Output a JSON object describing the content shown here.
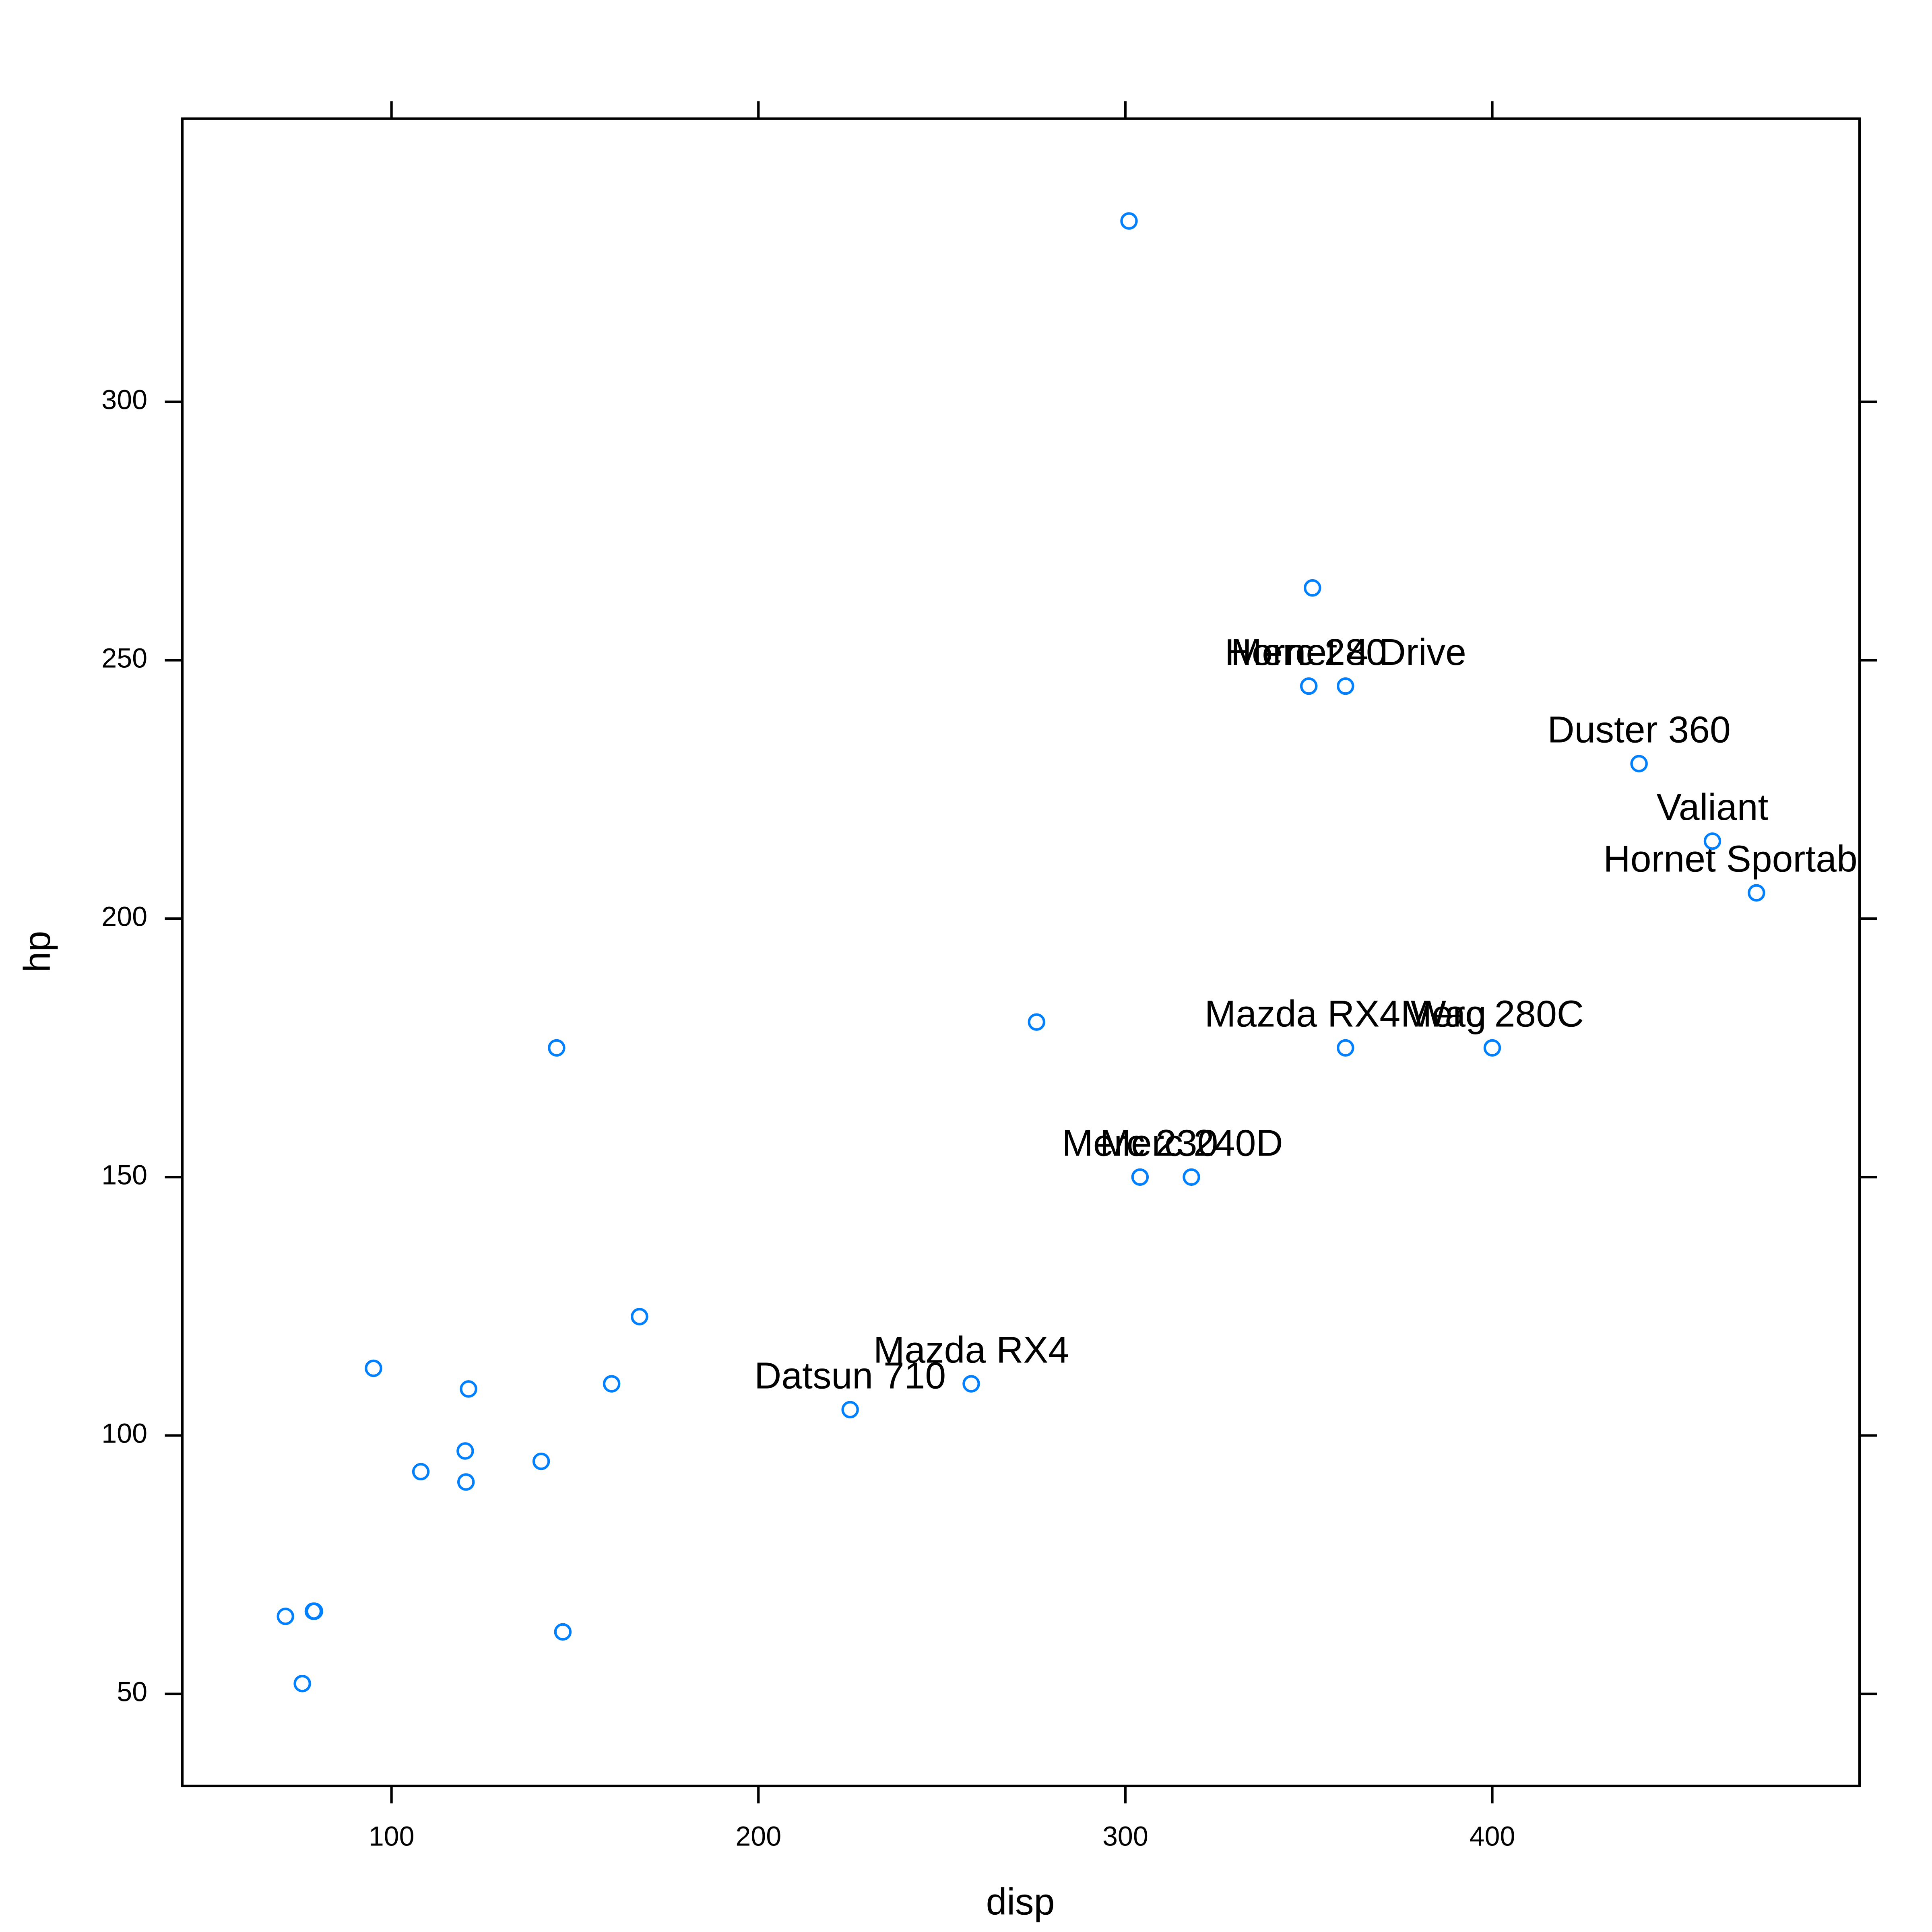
{
  "chart_data": {
    "type": "scatter",
    "x_label": "disp",
    "y_label": "hp",
    "color": "#0080ff",
    "xlim": [
      43.0,
      500.1
    ],
    "ylim": [
      32.2,
      354.8
    ],
    "xticks": [
      100,
      200,
      300,
      400
    ],
    "yticks": [
      50,
      100,
      150,
      200,
      250,
      300
    ],
    "series": [
      {
        "name": "hp",
        "x": [
          301,
          351,
          350,
          360,
          440,
          460,
          472,
          275.8,
          145,
          360,
          400,
          304,
          318,
          167.6,
          95.1,
          160,
          121,
          258,
          225,
          120.1,
          140.8,
          108,
          120.3,
          78.7,
          79,
          71.1,
          146.7,
          75.7
        ],
        "values": [
          335,
          264,
          245,
          245,
          230,
          215,
          205,
          180,
          175,
          175,
          175,
          150,
          150,
          123,
          113,
          110,
          109,
          110,
          105,
          97,
          95,
          93,
          91,
          66,
          66,
          65,
          62,
          52
        ],
        "point_labels": [
          null,
          null,
          "Merc 280",
          "Hornet 4 Drive",
          "Duster 360",
          "Valiant",
          "Hornet Sportabout",
          null,
          null,
          "Mazda RX4 Wag",
          "Merc 280C",
          "Merc 230",
          "Merc 240D",
          null,
          null,
          null,
          null,
          "Mazda RX4",
          "Datsun 710",
          null,
          null,
          null,
          null,
          null,
          null,
          null,
          null,
          null
        ]
      }
    ]
  }
}
